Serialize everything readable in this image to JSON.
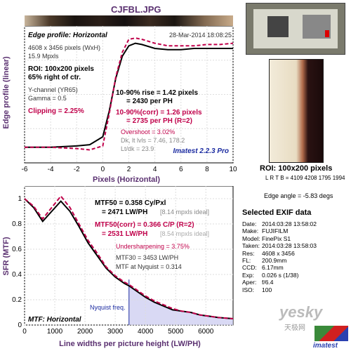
{
  "title": "CJFBL.JPG",
  "top_chart": {
    "header_left": "Edge profile: Horizontal",
    "header_right": "28-Mar-2014 18:08:25",
    "info_lines": [
      "4608 x 3456 pixels (WxH)",
      "15.9 Mpxls"
    ],
    "roi_lines": [
      "ROI: 100x200 pixels",
      "65% right of ctr."
    ],
    "channel_lines": [
      "Y-channel (YR65)",
      "Gamma = 0.5"
    ],
    "clipping": "Clipping = 2.25%",
    "rise1": "10-90% rise = 1.42 pixels",
    "rise2": "= 2430 per PH",
    "corr1": "10-90%(corr) = 1.26 pixels",
    "corr2": "= 2735 per PH (R=2)",
    "overshoot": "Overshoot = 3.02%",
    "dk": "Dk, lt lvls = 7.46, 178.2",
    "ltdk": "Lt/dk = 23.9",
    "brand": "Imatest 2.2.3 Pro",
    "ylabel": "Edge profile (linear)",
    "xlabel": "Pixels (Horizontal)",
    "xticks": [
      "-6",
      "-4",
      "-2",
      "0",
      "2",
      "4",
      "6",
      "8",
      "10"
    ]
  },
  "bottom_chart": {
    "ylabel": "SFR (MTF)",
    "xlabel": "Line widths per picture height (LW/PH)",
    "xticks": [
      "0",
      "1000",
      "2000",
      "3000",
      "4000",
      "5000",
      "6000"
    ],
    "yticks": [
      "0",
      "0.2",
      "0.4",
      "0.6",
      "0.8",
      "1"
    ],
    "mtf50": "MTF50 = 0.358 Cy/Pxl",
    "mtf50b": "= 2471 LW/PH",
    "mtf50b_ideal": "[8.14 mpxls ideal]",
    "mtf50c": "MTF50(corr) = 0.366 C/P (R=2)",
    "mtf50d": "= 2531 LW/PH",
    "mtf50d_ideal": "[8.54 mpxls ideal]",
    "undersharp": "Undersharpening = 3.75%",
    "mtf30": "MTF30 = 3453 LW/PH",
    "nyq": "MTF at Nyquist = 0.314",
    "nyq_label": "Nyquist freq.",
    "mtf_label": "MTF: Horizontal"
  },
  "right_panel": {
    "roi_title": "ROI: 100x200 pixels",
    "lrtb": "L R T B = 4109 4208 1795 1994",
    "edge_angle": "Edge angle = -5.83 degs",
    "exif_title": "Selected EXIF data",
    "exif": [
      [
        "Date:",
        "2014:03:28 13:58:02"
      ],
      [
        "Make:",
        "FUJIFILM"
      ],
      [
        "Model:",
        "FinePix S1"
      ],
      [
        "Taken:",
        "2014:03:28 13:58:03"
      ],
      [
        "Res:",
        "4608 x 3456"
      ],
      [
        "FL:",
        "200.9mm"
      ],
      [
        "CCD:",
        "6.17mm"
      ],
      [
        "Exp:",
        "0.026 s (1/38)"
      ],
      [
        "Aper:",
        "f/6.4"
      ],
      [
        "ISO:",
        "100"
      ]
    ],
    "watermark": "yesky",
    "watermark2": "天极网",
    "logo": "imatest"
  },
  "chart_data": [
    {
      "type": "line",
      "title": "Edge profile: Horizontal",
      "xlabel": "Pixels (Horizontal)",
      "ylabel": "Edge profile (linear)",
      "xlim": [
        -6,
        10
      ],
      "series": [
        {
          "x": [
            -6,
            -4,
            -2,
            -1,
            0,
            0.5,
            1,
            1.5,
            2,
            2.5,
            3,
            4,
            5,
            6,
            7,
            8,
            9,
            10
          ],
          "y": [
            0.12,
            0.12,
            0.13,
            0.14,
            0.2,
            0.4,
            0.65,
            0.82,
            0.9,
            0.92,
            0.91,
            0.88,
            0.87,
            0.87,
            0.88,
            0.88,
            0.88,
            0.88
          ]
        },
        {
          "x": [
            -6,
            -4,
            -2,
            -1,
            0,
            0.5,
            1,
            1.5,
            2,
            2.5,
            3,
            4,
            5,
            6,
            7,
            8,
            9,
            10
          ],
          "y": [
            0.12,
            0.12,
            0.11,
            0.1,
            0.13,
            0.38,
            0.66,
            0.85,
            0.95,
            0.96,
            0.95,
            0.92,
            0.9,
            0.9,
            0.9,
            0.91,
            0.91,
            0.92
          ]
        }
      ]
    },
    {
      "type": "line",
      "title": "MTF: Horizontal",
      "xlabel": "Line widths per picture height (LW/PH)",
      "ylabel": "SFR (MTF)",
      "xlim": [
        0,
        6900
      ],
      "ylim": [
        0,
        1.1
      ],
      "series": [
        {
          "x": [
            0,
            300,
            600,
            900,
            1200,
            1500,
            1800,
            2100,
            2400,
            2700,
            3000,
            3300,
            3456,
            3700,
            4000,
            4300,
            4600,
            4900,
            5200,
            5500,
            5800,
            6100,
            6400,
            6900
          ],
          "y": [
            1.0,
            0.93,
            0.82,
            0.9,
            0.98,
            0.9,
            0.78,
            0.65,
            0.55,
            0.45,
            0.38,
            0.33,
            0.31,
            0.27,
            0.22,
            0.18,
            0.15,
            0.12,
            0.11,
            0.1,
            0.08,
            0.07,
            0.06,
            0.05
          ]
        },
        {
          "x": [
            0,
            300,
            600,
            900,
            1200,
            1500,
            1800,
            2100,
            2400,
            2700,
            3000,
            3300,
            3456,
            3700,
            4000,
            4300,
            4600,
            4900,
            5200,
            5500,
            5800,
            6100,
            6400,
            6900
          ],
          "y": [
            1.0,
            0.94,
            0.84,
            0.93,
            1.02,
            0.93,
            0.8,
            0.67,
            0.57,
            0.46,
            0.39,
            0.34,
            0.32,
            0.28,
            0.23,
            0.19,
            0.16,
            0.13,
            0.11,
            0.1,
            0.08,
            0.07,
            0.06,
            0.05
          ]
        }
      ]
    }
  ]
}
